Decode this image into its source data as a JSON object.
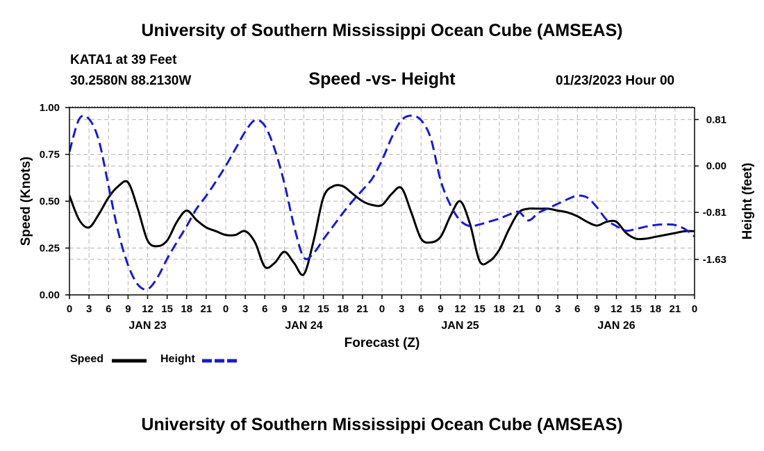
{
  "header": {
    "title": "University of Southern Mississippi Ocean Cube (AMSEAS)",
    "station": "KATA1 at 39 Feet",
    "coords": "30.2580N  88.2130W",
    "subtitle": "Speed -vs- Height",
    "datetime": "01/23/2023 Hour 00"
  },
  "footer": {
    "title": "University of Southern Mississippi Ocean Cube (AMSEAS)"
  },
  "legend": {
    "speed_label": "Speed",
    "height_label": "Height"
  },
  "colors": {
    "speed": "#000000",
    "height": "#1a1acc",
    "grid": "#b4b4b4"
  },
  "chart_data": {
    "type": "line",
    "title": "Speed -vs- Height",
    "xlabel": "Forecast (Z)",
    "ylabel_left": "Speed (Knots)",
    "ylabel_right": "Height (feet)",
    "x_unit": "hours since 01/23/2023 00Z",
    "xlim": [
      0,
      96
    ],
    "ylim_left": [
      0,
      1.0
    ],
    "ylim_right": [
      -2.25,
      1.02
    ],
    "x_tick_values": [
      0,
      3,
      6,
      9,
      12,
      15,
      18,
      21,
      24,
      27,
      30,
      33,
      36,
      39,
      42,
      45,
      48,
      51,
      54,
      57,
      60,
      63,
      66,
      69,
      72,
      75,
      78,
      81,
      84,
      87,
      90,
      93,
      96
    ],
    "x_tick_labels": [
      "0",
      "3",
      "6",
      "9",
      "12",
      "15",
      "18",
      "21",
      "0",
      "3",
      "6",
      "9",
      "12",
      "15",
      "18",
      "21",
      "0",
      "3",
      "6",
      "9",
      "12",
      "15",
      "18",
      "21",
      "0",
      "3",
      "6",
      "9",
      "12",
      "15",
      "18",
      "21",
      "0"
    ],
    "day_labels": [
      {
        "label": "JAN 23",
        "x": 12
      },
      {
        "label": "JAN 24",
        "x": 36
      },
      {
        "label": "JAN 25",
        "x": 60
      },
      {
        "label": "JAN 26",
        "x": 84
      }
    ],
    "y_left_ticks": [
      0.0,
      0.25,
      0.5,
      0.75,
      1.0
    ],
    "y_left_tick_labels": [
      "0.00",
      "0.25",
      "0.50",
      "0.75",
      "1.00"
    ],
    "y_right_ticks": [
      0.81,
      0.0,
      -0.81,
      -1.63
    ],
    "y_right_tick_labels": [
      "0.81",
      "0.00",
      "-0.81",
      "-1.63"
    ],
    "grid": true,
    "series": [
      {
        "name": "Speed",
        "axis": "left",
        "style": "solid",
        "x": [
          0,
          1.5,
          3,
          4.5,
          6,
          7.5,
          9,
          10.5,
          12,
          13.5,
          15,
          16.5,
          18,
          19.5,
          21,
          22.5,
          24,
          25.5,
          27,
          28.5,
          30,
          31.5,
          33,
          34.5,
          36,
          37.5,
          39,
          40.5,
          42,
          43.5,
          45,
          46.5,
          48,
          49.5,
          51,
          52.5,
          54,
          55.5,
          57,
          58.5,
          60,
          61.5,
          63,
          64.5,
          66,
          67.5,
          69,
          70.5,
          72,
          73.5,
          75,
          76.5,
          78,
          79.5,
          81,
          82.5,
          84,
          85.5,
          87,
          88.5,
          90,
          91.5,
          93,
          94.5,
          96
        ],
        "values": [
          0.53,
          0.4,
          0.36,
          0.43,
          0.52,
          0.58,
          0.6,
          0.46,
          0.29,
          0.26,
          0.29,
          0.39,
          0.45,
          0.4,
          0.36,
          0.34,
          0.32,
          0.32,
          0.34,
          0.28,
          0.15,
          0.17,
          0.23,
          0.17,
          0.11,
          0.29,
          0.52,
          0.58,
          0.58,
          0.54,
          0.5,
          0.48,
          0.48,
          0.54,
          0.57,
          0.44,
          0.3,
          0.28,
          0.31,
          0.42,
          0.5,
          0.38,
          0.18,
          0.18,
          0.24,
          0.35,
          0.44,
          0.46,
          0.46,
          0.46,
          0.45,
          0.44,
          0.42,
          0.39,
          0.37,
          0.39,
          0.39,
          0.33,
          0.3,
          0.3,
          0.31,
          0.32,
          0.33,
          0.34,
          0.34
        ]
      },
      {
        "name": "Height",
        "axis": "right",
        "style": "dashed",
        "x": [
          0,
          1.5,
          3,
          4.5,
          6,
          7.5,
          9,
          10.5,
          12,
          13.5,
          15,
          16.5,
          18,
          19.5,
          21,
          22.5,
          24,
          25.5,
          27,
          28.5,
          30,
          31.5,
          33,
          34.5,
          36,
          37.5,
          39,
          40.5,
          42,
          43.5,
          45,
          46.5,
          48,
          49.5,
          51,
          52.5,
          54,
          55.5,
          57,
          58.5,
          60,
          61.5,
          63,
          64.5,
          66,
          67.5,
          69,
          70.5,
          72,
          73.5,
          75,
          76.5,
          78,
          79.5,
          81,
          82.5,
          84,
          85.5,
          87,
          88.5,
          90,
          91.5,
          93,
          94.5,
          96
        ],
        "values": [
          0.25,
          0.82,
          0.82,
          0.45,
          -0.35,
          -1.15,
          -1.73,
          -2.07,
          -2.15,
          -1.95,
          -1.62,
          -1.33,
          -1.05,
          -0.75,
          -0.52,
          -0.27,
          0.0,
          0.3,
          0.6,
          0.8,
          0.7,
          0.3,
          -0.3,
          -1.05,
          -1.6,
          -1.52,
          -1.28,
          -1.05,
          -0.82,
          -0.61,
          -0.42,
          -0.22,
          0.1,
          0.5,
          0.8,
          0.88,
          0.8,
          0.48,
          -0.25,
          -0.68,
          -0.95,
          -1.05,
          -1.02,
          -0.97,
          -0.92,
          -0.85,
          -0.8,
          -0.95,
          -0.82,
          -0.74,
          -0.66,
          -0.58,
          -0.52,
          -0.55,
          -0.72,
          -0.94,
          -1.05,
          -1.13,
          -1.1,
          -1.06,
          -1.03,
          -1.02,
          -1.03,
          -1.1,
          -1.23
        ]
      }
    ]
  }
}
